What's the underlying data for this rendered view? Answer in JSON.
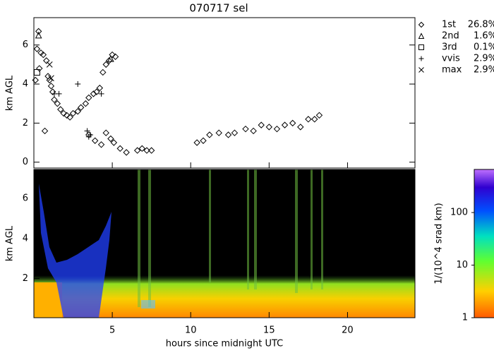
{
  "chart_data": {
    "type": "scatter",
    "title": "070717 sel",
    "xlabel": "hours since midnight UTC",
    "ylabel": "km AGL",
    "xlim": [
      0,
      24.3
    ],
    "xticks": [
      5,
      10,
      15,
      20
    ],
    "ylim": [
      -0.3,
      7.4
    ],
    "yticks": [
      0,
      2,
      4,
      6
    ],
    "series": [
      {
        "name": "1st",
        "share": "26.8%",
        "marker": "diamond",
        "color": "#000000",
        "x": [
          0.1,
          0.2,
          0.3,
          0.35,
          0.45,
          0.6,
          0.7,
          0.8,
          0.9,
          1.0,
          1.1,
          1.2,
          1.3,
          1.5,
          1.7,
          1.9,
          2.1,
          2.3,
          2.5,
          2.8,
          3.0,
          3.3,
          3.5,
          3.8,
          4.0,
          4.2,
          4.4,
          4.6,
          4.8,
          5.0,
          5.2,
          3.5,
          3.9,
          4.3,
          4.6,
          4.9,
          5.1,
          5.5,
          5.9,
          6.6,
          6.9,
          7.2,
          7.5,
          10.4,
          10.8,
          11.2,
          11.8,
          12.4,
          12.8,
          13.5,
          14.0,
          14.5,
          15.0,
          15.5,
          16.0,
          16.5,
          17.0,
          17.5,
          17.9,
          18.2
        ],
        "values": [
          4.2,
          5.8,
          6.7,
          4.8,
          5.6,
          5.5,
          1.6,
          5.2,
          4.4,
          4.2,
          3.9,
          3.6,
          3.2,
          3.0,
          2.7,
          2.5,
          2.4,
          2.3,
          2.5,
          2.6,
          2.8,
          3.0,
          3.3,
          3.5,
          3.6,
          3.8,
          4.6,
          5.0,
          5.2,
          5.5,
          5.4,
          1.4,
          1.1,
          0.9,
          1.5,
          1.2,
          1.0,
          0.7,
          0.5,
          0.6,
          0.7,
          0.6,
          0.6,
          1.0,
          1.1,
          1.4,
          1.5,
          1.4,
          1.5,
          1.7,
          1.6,
          1.9,
          1.8,
          1.7,
          1.9,
          2.0,
          1.8,
          2.2,
          2.2,
          2.4
        ]
      },
      {
        "name": "2nd",
        "share": "1.6%",
        "marker": "triangle",
        "color": "#000000",
        "x": [
          0.3,
          4.9
        ],
        "values": [
          6.5,
          5.3
        ]
      },
      {
        "name": "3rd",
        "share": "0.1%",
        "marker": "square",
        "color": "#000000",
        "x": [
          0.2
        ],
        "values": [
          4.6
        ]
      },
      {
        "name": "vvis",
        "share": "2.9%",
        "marker": "plus",
        "color": "#000000",
        "x": [
          1.3,
          1.6,
          2.8,
          3.4,
          3.5,
          3.6,
          4.3
        ],
        "values": [
          3.5,
          3.5,
          4.0,
          1.6,
          1.3,
          1.4,
          3.5
        ]
      },
      {
        "name": "max",
        "share": "2.9%",
        "marker": "cross",
        "color": "#000000",
        "x": [
          1.0,
          1.1
        ],
        "values": [
          5.0,
          4.3
        ]
      }
    ],
    "backscatter": {
      "ylabel": "km AGL",
      "ylim": [
        0.05,
        7.45
      ],
      "yticks": [
        2,
        4,
        6
      ],
      "colorbar": {
        "label": "1/(10^4 srad km)",
        "log": true,
        "lim": [
          1,
          660
        ],
        "ticks": [
          1,
          10,
          100
        ]
      }
    }
  }
}
